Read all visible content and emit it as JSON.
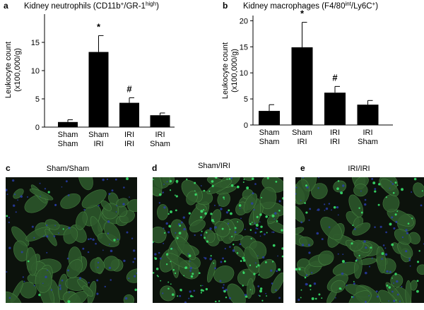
{
  "colors": {
    "bar": "#000000",
    "micrograph_bg": "#0c120c",
    "tissue": "#2e5a2c",
    "tissue_edge": "#4a8a44",
    "nuclei": "#2a3fae",
    "stain": "#39e06a"
  },
  "chart_data": [
    {
      "panel": "a",
      "type": "bar",
      "title": "Kidney neutrophils (CD11b",
      "title_sup1": "+",
      "title_mid": "/GR-1",
      "title_sup2": "high",
      "title_end": ")",
      "ylabel_line1": "Leukocyte count",
      "ylabel_line2": "(x100,000/g)",
      "ylim": [
        0,
        20
      ],
      "yticks": [
        "0",
        "5",
        "10",
        "15"
      ],
      "ytick_values": [
        0,
        5,
        10,
        15
      ],
      "categories": [
        [
          "Sham",
          "Sham"
        ],
        [
          "Sham",
          "IRI"
        ],
        [
          "IRI",
          "IRI"
        ],
        [
          "IRI",
          "Sham"
        ]
      ],
      "values": [
        0.9,
        13.3,
        4.3,
        2.1
      ],
      "errors": [
        0.4,
        2.9,
        0.9,
        0.4
      ],
      "markers": [
        "",
        "*",
        "#",
        ""
      ],
      "grid": false
    },
    {
      "panel": "b",
      "type": "bar",
      "title": "Kidney macrophages (F4/80",
      "title_sup1": "int",
      "title_mid": "/Ly6C",
      "title_sup2": "+",
      "title_end": ")",
      "ylabel_line1": "Leukocyte count",
      "ylabel_line2": "(x100,000/g)",
      "ylim": [
        0,
        21
      ],
      "yticks": [
        "0",
        "5",
        "10",
        "15",
        "20"
      ],
      "ytick_values": [
        0,
        5,
        10,
        15,
        20
      ],
      "categories": [
        [
          "Sham",
          "Sham"
        ],
        [
          "Sham",
          "IRI"
        ],
        [
          "IRI",
          "IRI"
        ],
        [
          "IRI",
          "Sham"
        ]
      ],
      "values": [
        2.7,
        14.9,
        6.2,
        3.9
      ],
      "errors": [
        1.2,
        4.8,
        1.2,
        0.8
      ],
      "markers": [
        "",
        "*",
        "#",
        ""
      ],
      "grid": false
    }
  ],
  "micrographs": [
    {
      "panel": "c",
      "title": "Sham/Sham",
      "stain_density": 0.05
    },
    {
      "panel": "d",
      "title": "Sham/IRI",
      "stain_density": 0.9
    },
    {
      "panel": "e",
      "title": "IRI/IRI",
      "stain_density": 0.35
    }
  ]
}
